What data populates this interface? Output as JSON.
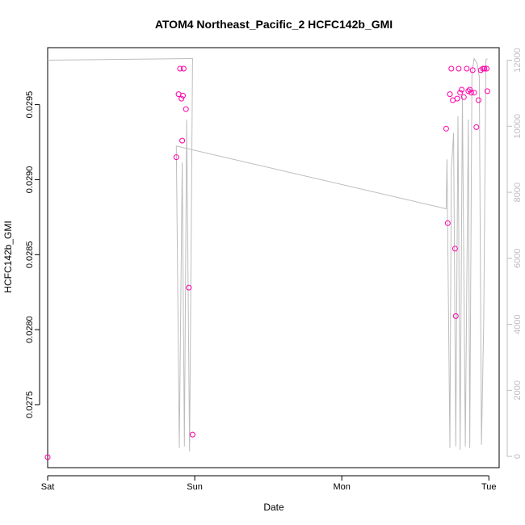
{
  "chart_data": {
    "type": "scatter",
    "title": "ATOM4 Northeast_Pacific_2 HCFC142b_GMI",
    "xlabel": "Date",
    "ylabel": "HCFC142b_GMI",
    "x_ticks": [
      "Sat",
      "Sun",
      "Mon",
      "Tue"
    ],
    "xlim": [
      0,
      3.07
    ],
    "ylim": [
      0.02708,
      0.02988
    ],
    "y_ticks": [
      "0.0275",
      "0.0280",
      "0.0285",
      "0.0290",
      "0.0295"
    ],
    "y_tick_values": [
      0.0275,
      0.028,
      0.0285,
      0.029,
      0.0295
    ],
    "y2lim": [
      -340,
      12380
    ],
    "y2_ticks": [
      "0",
      "2000",
      "4000",
      "6000",
      "8000",
      "10000",
      "12000"
    ],
    "y2_tick_values": [
      0,
      2000,
      4000,
      6000,
      8000,
      10000,
      12000
    ],
    "colors": {
      "points": "#ff00aa",
      "line": "#bdbdbd"
    },
    "points": {
      "x": [
        0.0,
        0.875,
        0.89,
        0.9,
        0.91,
        0.915,
        0.92,
        0.925,
        0.94,
        0.96,
        0.985,
        2.71,
        2.72,
        2.735,
        2.745,
        2.755,
        2.77,
        2.775,
        2.785,
        2.795,
        2.805,
        2.815,
        2.83,
        2.85,
        2.86,
        2.87,
        2.88,
        2.89,
        2.9,
        2.915,
        2.93,
        2.945,
        2.96,
        2.97,
        2.985,
        2.99
      ],
      "y": [
        0.02715,
        0.02915,
        0.02957,
        0.02974,
        0.02954,
        0.02926,
        0.02956,
        0.02974,
        0.02947,
        0.02828,
        0.0273,
        0.02934,
        0.02871,
        0.02957,
        0.02974,
        0.02953,
        0.02854,
        0.02809,
        0.02954,
        0.02974,
        0.02958,
        0.0296,
        0.02955,
        0.02974,
        0.02959,
        0.0296,
        0.02958,
        0.02973,
        0.02958,
        0.02935,
        0.02953,
        0.02973,
        0.02974,
        0.02974,
        0.02974,
        0.02959
      ]
    },
    "altitude_series": {
      "axis": "right",
      "x": [
        0.0,
        0.98,
        0.985,
        0.965,
        0.945,
        0.93,
        0.915,
        0.895,
        0.875,
        2.71,
        2.715,
        2.735,
        2.745,
        2.76,
        2.775,
        2.79,
        2.805,
        2.82,
        2.84,
        2.86,
        2.87,
        2.885,
        2.9,
        2.92,
        2.935,
        2.95,
        2.965,
        2.98,
        2.99
      ],
      "y": [
        12000,
        12050,
        12050,
        150,
        10200,
        300,
        8900,
        250,
        9400,
        7500,
        9000,
        250,
        8700,
        9800,
        300,
        10300,
        200,
        10900,
        300,
        10200,
        250,
        11600,
        12050,
        11900,
        11500,
        350,
        4100,
        12000,
        12050
      ]
    }
  }
}
